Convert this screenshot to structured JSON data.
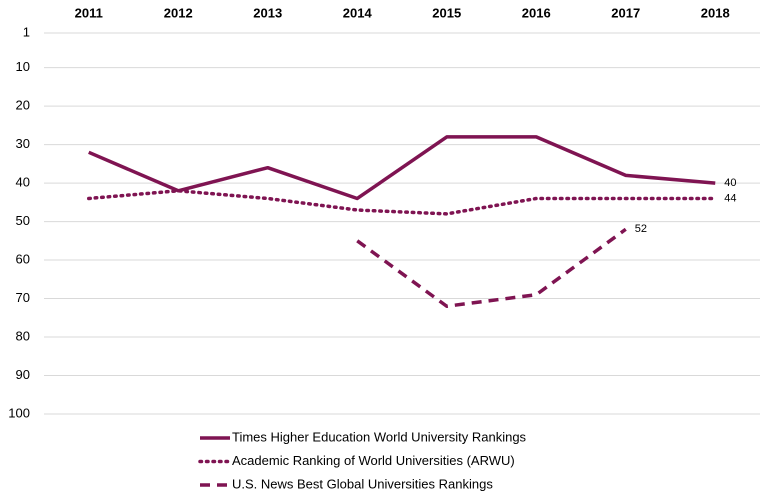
{
  "chart_data": {
    "type": "line",
    "categories": [
      "2011",
      "2012",
      "2013",
      "2014",
      "2015",
      "2016",
      "2017",
      "2018"
    ],
    "series": [
      {
        "name": "Times Higher Education  World University Rankings",
        "color": "#7f1452",
        "line_style": "solid",
        "show_last_label": true,
        "values": [
          32,
          42,
          36,
          44,
          28,
          28,
          38,
          40
        ]
      },
      {
        "name": "Academic Ranking of World Universities (ARWU)",
        "color": "#7f1452",
        "line_style": "dotted",
        "show_last_label": true,
        "values": [
          44,
          42,
          44,
          47,
          48,
          44,
          44,
          44
        ]
      },
      {
        "name": "U.S. News Best Global Universities Rankings",
        "color": "#7f1452",
        "line_style": "dashed",
        "show_last_label": true,
        "values": [
          null,
          null,
          null,
          55,
          72,
          69,
          52,
          null
        ]
      }
    ],
    "ylim": [
      1,
      100
    ],
    "y_reversed": true,
    "yticks": [
      1,
      10,
      20,
      30,
      40,
      50,
      60,
      70,
      80,
      90,
      100
    ],
    "grid": true,
    "category_axis_position": "top",
    "legend": "bottom"
  }
}
